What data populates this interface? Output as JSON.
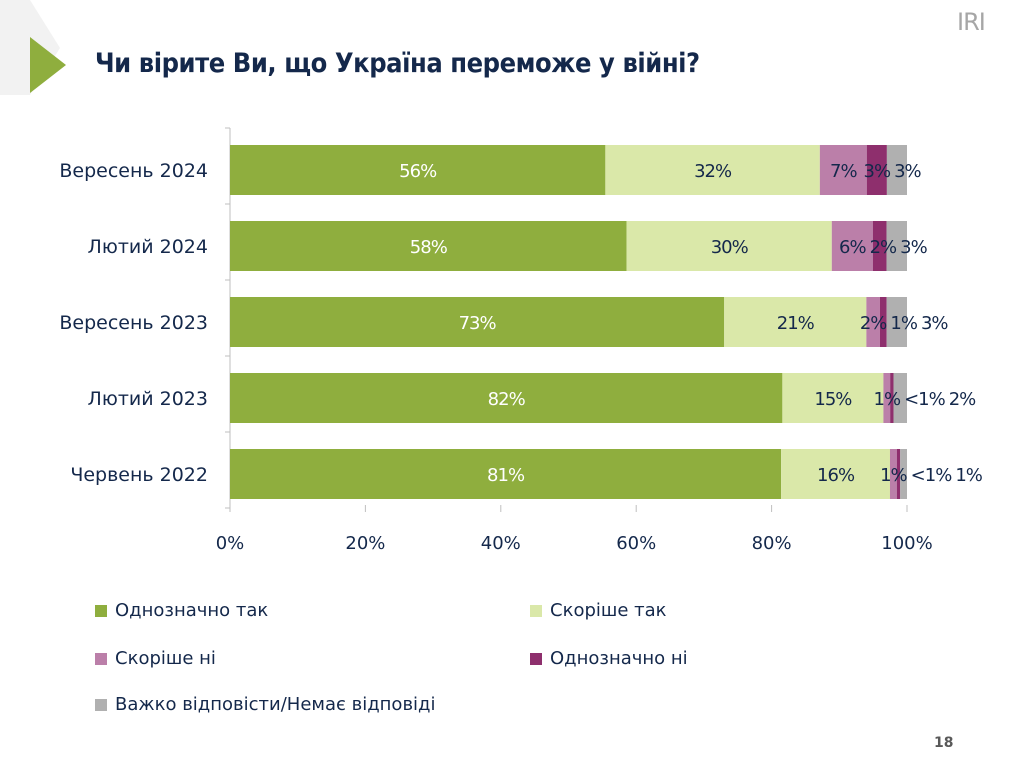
{
  "header": {
    "title": "Чи вірите Ви, що Україна переможе у війні?",
    "logo": "IRI",
    "page_number": "18"
  },
  "chart_data": {
    "type": "bar",
    "orientation": "horizontal",
    "stacked": true,
    "title": "Чи вірите Ви, що Україна переможе у війні?",
    "categories": [
      "Вересень 2024",
      "Лютий 2024",
      "Вересень 2023",
      "Лютий 2023",
      "Червень 2022"
    ],
    "series": [
      {
        "name": "Однозначно так",
        "color": "#8fae3e",
        "label_color": "#ffffff",
        "values": [
          56,
          58,
          73,
          82,
          81
        ],
        "labels": [
          "56%",
          "58%",
          "73%",
          "82%",
          "81%"
        ]
      },
      {
        "name": "Скоріше так",
        "color": "#dae8a9",
        "label_color": "#14284b",
        "values": [
          32,
          30,
          21,
          15,
          16
        ],
        "labels": [
          "32%",
          "30%",
          "21%",
          "15%",
          "16%"
        ]
      },
      {
        "name": "Скоріше ні",
        "color": "#bb7fa9",
        "label_color": "#14284b",
        "values": [
          7,
          6,
          2,
          1,
          1
        ],
        "labels": [
          "7%",
          "6%",
          "2%",
          "1%",
          "1%"
        ]
      },
      {
        "name": "Однозначно ні",
        "color": "#8e2f6d",
        "label_color": "#ffffff",
        "values": [
          3,
          2,
          1,
          0.5,
          0.5
        ],
        "labels": [
          "3%",
          "2%",
          "1%",
          "<1%",
          "<1%"
        ]
      },
      {
        "name": "Важко відповісти/Немає відповіді",
        "color": "#b0b0b0",
        "label_color": "#14284b",
        "values": [
          3,
          3,
          3,
          2,
          1
        ],
        "labels": [
          "3%",
          "3%",
          "3%",
          "2%",
          "1%"
        ]
      }
    ],
    "xlim": [
      0,
      100
    ],
    "xticks": [
      "0%",
      "20%",
      "40%",
      "60%",
      "80%",
      "100%"
    ],
    "grid": false,
    "legend_placement": "bottom"
  }
}
